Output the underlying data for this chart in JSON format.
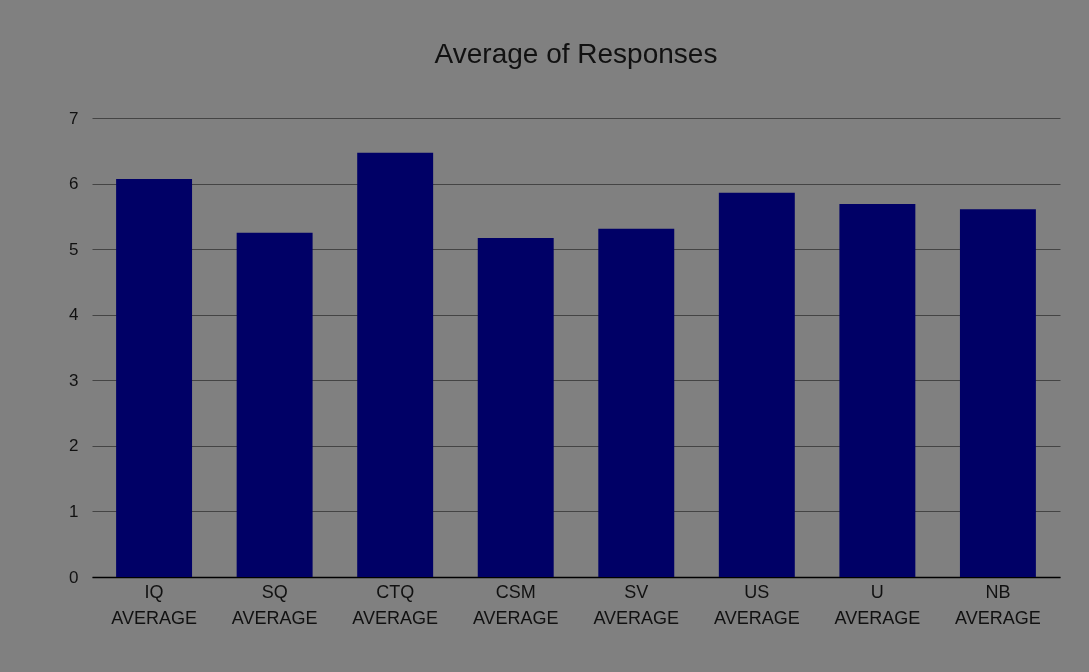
{
  "chart_data": {
    "type": "bar",
    "title": "Average of Responses",
    "categories": [
      "IQ AVERAGE",
      "SQ AVERAGE",
      "CTQ AVERAGE",
      "CSM AVERAGE",
      "SV AVERAGE",
      "US AVERAGE",
      "U AVERAGE",
      "NB AVERAGE"
    ],
    "values": [
      6.07,
      5.25,
      6.47,
      5.17,
      5.31,
      5.86,
      5.69,
      5.61
    ],
    "color": "#000066",
    "ylim": [
      0,
      7
    ],
    "yticks": [
      0,
      1,
      2,
      3,
      4,
      5,
      6,
      7
    ],
    "grid": "y"
  }
}
